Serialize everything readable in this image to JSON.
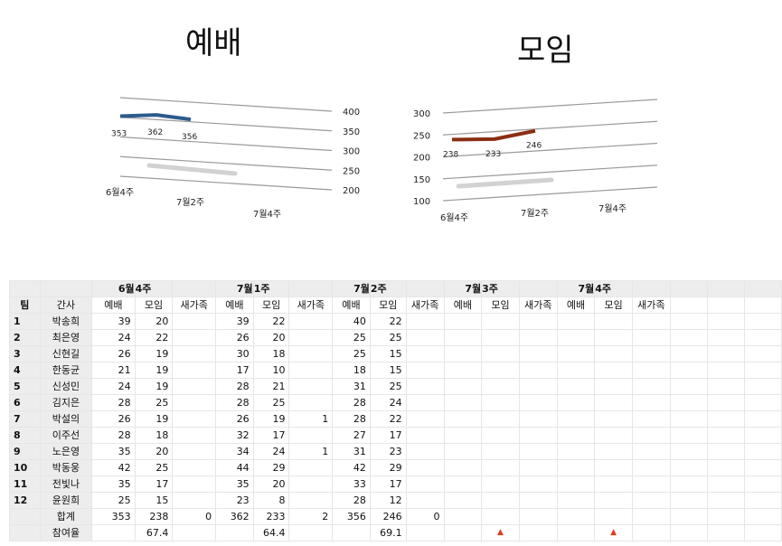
{
  "charts": {
    "worship": {
      "title": "예배",
      "ticks": [
        "400",
        "350",
        "300",
        "250",
        "200"
      ],
      "categories": [
        "6월4주",
        "7월2주",
        "7월4주"
      ],
      "color": "#2d5b8c"
    },
    "meeting": {
      "title": "모임",
      "ticks": [
        "300",
        "250",
        "200",
        "150",
        "100"
      ],
      "categories": [
        "6월4주",
        "7월2주",
        "7월4주"
      ],
      "color": "#8a2e12"
    }
  },
  "chart_data": [
    {
      "type": "line",
      "title": "예배",
      "categories": [
        "6월4주",
        "7월1주",
        "7월2주"
      ],
      "series": [
        {
          "values": [
            353,
            362,
            356
          ]
        }
      ],
      "ylim": [
        200,
        400
      ],
      "y_ticks": [
        200,
        250,
        300,
        350,
        400
      ],
      "x_tick_labels": [
        "6월4주",
        "7월2주",
        "7월4주"
      ],
      "data_labels": [
        "353",
        "362",
        "356"
      ],
      "color": "#2d5b8c",
      "style": "3d-perspective",
      "grid": true,
      "legend": "none"
    },
    {
      "type": "line",
      "title": "모임",
      "categories": [
        "6월4주",
        "7월1주",
        "7월2주"
      ],
      "series": [
        {
          "values": [
            238,
            233,
            246
          ]
        }
      ],
      "ylim": [
        100,
        300
      ],
      "y_ticks": [
        100,
        150,
        200,
        250,
        300
      ],
      "x_tick_labels": [
        "6월4주",
        "7월2주",
        "7월4주"
      ],
      "data_labels": [
        "238",
        "233",
        "246"
      ],
      "color": "#8a2e12",
      "style": "3d-perspective",
      "grid": true,
      "legend": "none"
    }
  ],
  "table": {
    "weeks": [
      "6월4주",
      "7월1주",
      "7월2주",
      "7월3주",
      "7월4주"
    ],
    "col_team": "팀",
    "col_leader": "간사",
    "sub": [
      "예배",
      "모임",
      "새가족",
      "예배",
      "모임",
      "새가족",
      "예배",
      "모임",
      "새가족",
      "예배",
      "모임",
      "새가족",
      "예배",
      "모임",
      "새가족"
    ],
    "rows": [
      {
        "team": "1",
        "name": "박송희",
        "v": [
          "39",
          "20",
          "",
          "39",
          "22",
          "",
          "40",
          "22",
          "",
          "",
          "",
          "",
          "",
          "",
          ""
        ]
      },
      {
        "team": "2",
        "name": "최은영",
        "v": [
          "24",
          "22",
          "",
          "26",
          "20",
          "",
          "25",
          "25",
          "",
          "",
          "",
          "",
          "",
          "",
          ""
        ]
      },
      {
        "team": "3",
        "name": "신현길",
        "v": [
          "26",
          "19",
          "",
          "30",
          "18",
          "",
          "25",
          "15",
          "",
          "",
          "",
          "",
          "",
          "",
          ""
        ]
      },
      {
        "team": "4",
        "name": "한동균",
        "v": [
          "21",
          "19",
          "",
          "17",
          "10",
          "",
          "18",
          "15",
          "",
          "",
          "",
          "",
          "",
          "",
          ""
        ]
      },
      {
        "team": "5",
        "name": "신성민",
        "v": [
          "24",
          "19",
          "",
          "28",
          "21",
          "",
          "31",
          "25",
          "",
          "",
          "",
          "",
          "",
          "",
          ""
        ]
      },
      {
        "team": "6",
        "name": "김지은",
        "v": [
          "28",
          "25",
          "",
          "28",
          "25",
          "",
          "28",
          "24",
          "",
          "",
          "",
          "",
          "",
          "",
          ""
        ]
      },
      {
        "team": "7",
        "name": "박설의",
        "v": [
          "26",
          "19",
          "",
          "26",
          "19",
          "1",
          "28",
          "22",
          "",
          "",
          "",
          "",
          "",
          "",
          ""
        ]
      },
      {
        "team": "8",
        "name": "이주선",
        "v": [
          "28",
          "18",
          "",
          "32",
          "17",
          "",
          "27",
          "17",
          "",
          "",
          "",
          "",
          "",
          "",
          ""
        ]
      },
      {
        "team": "9",
        "name": "노은영",
        "v": [
          "35",
          "20",
          "",
          "34",
          "24",
          "1",
          "31",
          "23",
          "",
          "",
          "",
          "",
          "",
          "",
          ""
        ]
      },
      {
        "team": "10",
        "name": "박동웅",
        "v": [
          "42",
          "25",
          "",
          "44",
          "29",
          "",
          "42",
          "29",
          "",
          "",
          "",
          "",
          "",
          "",
          ""
        ]
      },
      {
        "team": "11",
        "name": "전빛나",
        "v": [
          "35",
          "17",
          "",
          "35",
          "20",
          "",
          "33",
          "17",
          "",
          "",
          "",
          "",
          "",
          "",
          ""
        ]
      },
      {
        "team": "12",
        "name": "윤원희",
        "v": [
          "25",
          "15",
          "",
          "23",
          "8",
          "",
          "28",
          "12",
          "",
          "",
          "",
          "",
          "",
          "",
          ""
        ]
      }
    ],
    "total": {
      "label": "합계",
      "v": [
        "353",
        "238",
        "0",
        "362",
        "233",
        "2",
        "356",
        "246",
        "0",
        "",
        "",
        "",
        "",
        "",
        ""
      ]
    },
    "rate": {
      "label": "참여율",
      "v": [
        "",
        "67.4",
        "",
        "",
        "64.4",
        "",
        "",
        "69.1",
        "",
        "",
        "",
        "",
        "",
        "",
        ""
      ]
    }
  }
}
